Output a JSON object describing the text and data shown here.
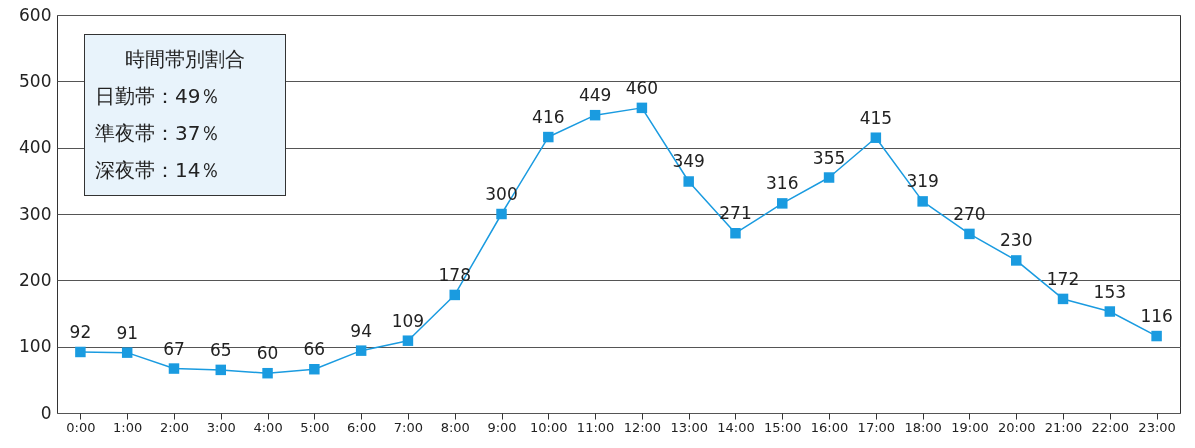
{
  "chart_data": {
    "type": "line",
    "categories": [
      "0:00",
      "1:00",
      "2:00",
      "3:00",
      "4:00",
      "5:00",
      "6:00",
      "7:00",
      "8:00",
      "9:00",
      "10:00",
      "11:00",
      "12:00",
      "13:00",
      "14:00",
      "15:00",
      "16:00",
      "17:00",
      "18:00",
      "19:00",
      "20:00",
      "21:00",
      "22:00",
      "23:00"
    ],
    "series": [
      {
        "color": "#1a9be0",
        "values": [
          92,
          91,
          67,
          65,
          60,
          66,
          94,
          109,
          178,
          300,
          416,
          449,
          460,
          349,
          271,
          316,
          355,
          415,
          319,
          270,
          230,
          172,
          153,
          116
        ]
      }
    ],
    "ylim": [
      0,
      600
    ],
    "yticks": [
      0,
      100,
      200,
      300,
      400,
      500,
      600
    ],
    "grid": "y",
    "marker": "square",
    "line_style": "solid",
    "data_labels": true,
    "annotations": [
      "時間帯別割合",
      "日勤帯：49％",
      "準夜帯：37％",
      "深夜帯：14％"
    ]
  }
}
